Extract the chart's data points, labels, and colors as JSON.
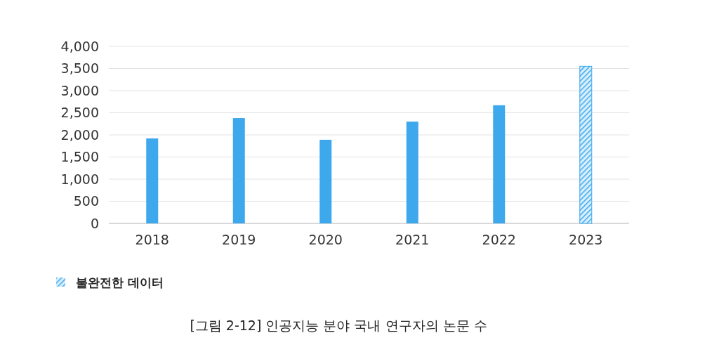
{
  "chart_data": {
    "type": "bar",
    "title": "[그림 2-12] 인공지능 분야 국내 연구자의 논문 수",
    "categories": [
      "2018",
      "2019",
      "2020",
      "2021",
      "2022",
      "2023"
    ],
    "series": [
      {
        "color": "#3ea8ec",
        "values": [
          1920,
          2380,
          1890,
          2300,
          2670,
          null
        ]
      },
      {
        "name": "불완전한 데이터",
        "color": "#3ea8ec",
        "values": [
          null,
          null,
          null,
          null,
          null,
          3550
        ]
      }
    ],
    "ylim": [
      0,
      4000
    ],
    "yticks": [
      {
        "value": 0,
        "label": "0"
      },
      {
        "value": 500,
        "label": "500"
      },
      {
        "value": 1000,
        "label": "1,000"
      },
      {
        "value": 1500,
        "label": "1,500"
      },
      {
        "value": 2000,
        "label": "2,000"
      },
      {
        "value": 2500,
        "label": "2,500"
      },
      {
        "value": 3000,
        "label": "3,000"
      },
      {
        "value": 3500,
        "label": "3,500"
      },
      {
        "value": 4000,
        "label": "4,000"
      }
    ],
    "grid": "y",
    "legend": "bottom left"
  }
}
